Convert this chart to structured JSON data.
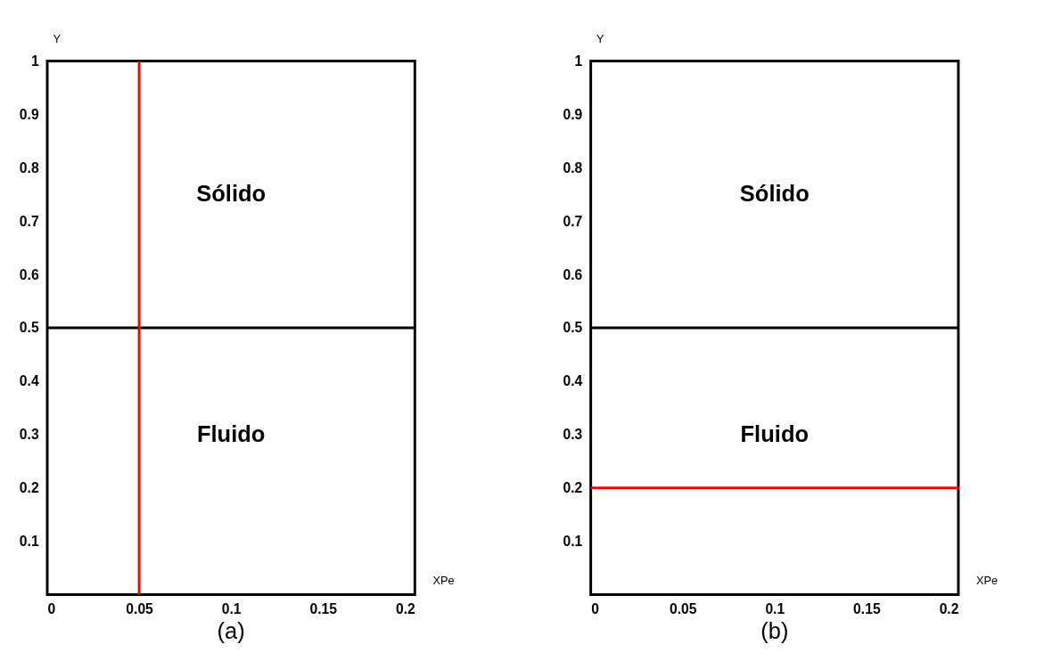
{
  "chart_data": [
    {
      "type": "line",
      "grid": false,
      "title": "(a)",
      "xlabel": "XPe",
      "ylabel": "Y",
      "xlim": [
        0,
        0.2
      ],
      "ylim": [
        0,
        1
      ],
      "xticks": [
        0,
        0.05,
        0.1,
        0.15,
        0.2
      ],
      "yticks": [
        0.1,
        0.2,
        0.3,
        0.4,
        0.5,
        0.6,
        0.7,
        0.8,
        0.9,
        1
      ],
      "ref_lines": [
        {
          "axis": "y",
          "value": 0.5,
          "color": "#000000"
        },
        {
          "axis": "x",
          "value": 0.05,
          "color": "#ff0000"
        }
      ],
      "annotations": [
        "Sólido",
        "Fluido"
      ]
    },
    {
      "type": "line",
      "grid": false,
      "title": "(b)",
      "xlabel": "XPe",
      "ylabel": "Y",
      "xlim": [
        0,
        0.2
      ],
      "ylim": [
        0,
        1
      ],
      "xticks": [
        0,
        0.05,
        0.1,
        0.15,
        0.2
      ],
      "yticks": [
        0.1,
        0.2,
        0.3,
        0.4,
        0.5,
        0.6,
        0.7,
        0.8,
        0.9,
        1
      ],
      "ref_lines": [
        {
          "axis": "y",
          "value": 0.5,
          "color": "#000000"
        },
        {
          "axis": "y",
          "value": 0.2,
          "color": "#ff0000"
        }
      ],
      "annotations": [
        "Sólido",
        "Fluido"
      ]
    }
  ]
}
